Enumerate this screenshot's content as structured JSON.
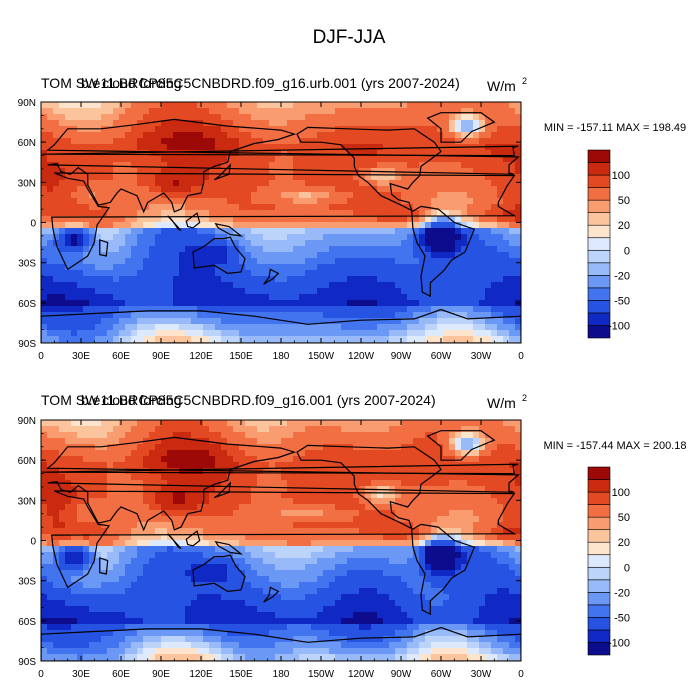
{
  "figure": {
    "title": "DJF-JJA"
  },
  "chart_data": [
    {
      "type": "heatmap",
      "subtype": "filled-contour-map",
      "projection": "cylindrical-equidistant",
      "title_left": "TOM SW cloud forcing",
      "title_overlay": "b.e11.BRCP85C5CNBDRD.f09_g16.urb.001 (yrs 2007-2024)",
      "units": "W/m",
      "units_sup": "2",
      "stats": "MIN = -157.11 MAX = 198.49",
      "x_ticks": [
        "0",
        "30E",
        "60E",
        "90E",
        "120E",
        "150E",
        "180",
        "150W",
        "120W",
        "90W",
        "60W",
        "30W",
        "0"
      ],
      "y_ticks": [
        "90N",
        "60N",
        "30N",
        "0",
        "30S",
        "60S",
        "90S"
      ],
      "xlim": [
        0,
        360
      ],
      "ylim": [
        -90,
        90
      ],
      "colorbar": {
        "labels": [
          "100",
          "50",
          "20",
          "0",
          "-20",
          "-50",
          "-100"
        ],
        "colors": [
          "#0d0c8c",
          "#1029c4",
          "#2753e3",
          "#4374ef",
          "#6b98f4",
          "#98baf8",
          "#bcd3fa",
          "#dde9fd",
          "#fde4cc",
          "#fcc49d",
          "#f99d70",
          "#f26f44",
          "#e34a23",
          "#c92a10",
          "#9c0906"
        ]
      }
    },
    {
      "type": "heatmap",
      "subtype": "filled-contour-map",
      "projection": "cylindrical-equidistant",
      "title_left": "TOM SW cloud forcing",
      "title_overlay": "b.e11.BRCP85C5CNBDRD.f09_g16.001 (yrs 2007-2024)",
      "units": "W/m",
      "units_sup": "2",
      "stats": "MIN = -157.44 MAX = 200.18",
      "x_ticks": [
        "0",
        "30E",
        "60E",
        "90E",
        "120E",
        "150E",
        "180",
        "150W",
        "120W",
        "90W",
        "60W",
        "30W",
        "0"
      ],
      "y_ticks": [
        "90N",
        "60N",
        "30N",
        "0",
        "30S",
        "60S",
        "90S"
      ],
      "xlim": [
        0,
        360
      ],
      "ylim": [
        -90,
        90
      ],
      "colorbar": {
        "labels": [
          "100",
          "50",
          "20",
          "0",
          "-20",
          "-50",
          "-100"
        ],
        "colors": [
          "#0d0c8c",
          "#1029c4",
          "#2753e3",
          "#4374ef",
          "#6b98f4",
          "#98baf8",
          "#bcd3fa",
          "#dde9fd",
          "#fde4cc",
          "#fcc49d",
          "#f99d70",
          "#f26f44",
          "#e34a23",
          "#c92a10",
          "#9c0906"
        ]
      }
    }
  ]
}
